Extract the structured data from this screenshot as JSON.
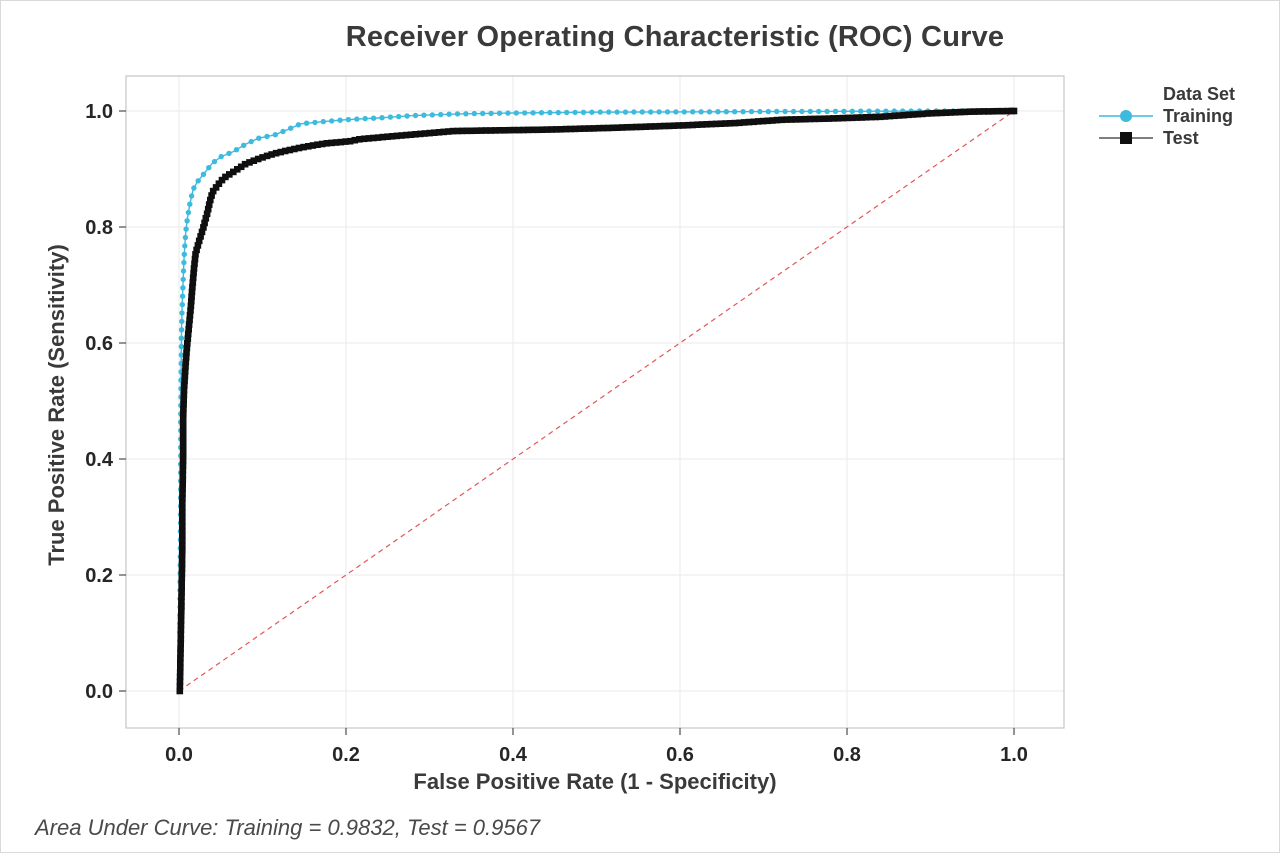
{
  "chart_data": {
    "type": "line",
    "title": "Receiver Operating Characteristic (ROC) Curve",
    "xlabel": "False Positive Rate (1 - Specificity)",
    "ylabel": "True Positive Rate (Sensitivity)",
    "footer_note": "Area Under Curve: Training = 0.9832, Test = 0.9567",
    "auc": {
      "Training": 0.9832,
      "Test": 0.9567
    },
    "xlim": [
      0,
      1
    ],
    "ylim": [
      0,
      1
    ],
    "xticks": [
      0.0,
      0.2,
      0.4,
      0.6,
      0.8,
      1.0
    ],
    "yticks": [
      0.0,
      0.2,
      0.4,
      0.6,
      0.8,
      1.0
    ],
    "grid": true,
    "legend_position": "right",
    "reference_line": {
      "name": "chance-diagonal",
      "from": [
        0,
        0
      ],
      "to": [
        1,
        1
      ],
      "color": "#e25757",
      "style": "dashed"
    },
    "series": [
      {
        "name": "Training",
        "color": "#3dbade",
        "line_color": "#3dbade",
        "marker": "circle",
        "marker_size": 5.4,
        "marker_spacing": 8.4,
        "points": [
          [
            0.0005,
            0.0
          ],
          [
            0.001,
            0.1
          ],
          [
            0.0015,
            0.22
          ],
          [
            0.002,
            0.35
          ],
          [
            0.002,
            0.47
          ],
          [
            0.0025,
            0.55
          ],
          [
            0.003,
            0.62
          ],
          [
            0.004,
            0.67
          ],
          [
            0.005,
            0.71
          ],
          [
            0.006,
            0.745
          ],
          [
            0.008,
            0.79
          ],
          [
            0.01,
            0.815
          ],
          [
            0.013,
            0.84
          ],
          [
            0.017,
            0.865
          ],
          [
            0.022,
            0.878
          ],
          [
            0.03,
            0.892
          ],
          [
            0.04,
            0.91
          ],
          [
            0.05,
            0.921
          ],
          [
            0.065,
            0.93
          ],
          [
            0.08,
            0.943
          ],
          [
            0.095,
            0.953
          ],
          [
            0.115,
            0.959
          ],
          [
            0.13,
            0.968
          ],
          [
            0.146,
            0.978
          ],
          [
            0.175,
            0.982
          ],
          [
            0.2,
            0.985
          ],
          [
            0.238,
            0.988
          ],
          [
            0.28,
            0.992
          ],
          [
            0.334,
            0.995
          ],
          [
            0.4,
            0.9965
          ],
          [
            0.5,
            0.998
          ],
          [
            0.6,
            0.9985
          ],
          [
            0.7,
            0.999
          ],
          [
            0.8,
            0.9995
          ],
          [
            0.9,
            1.0
          ],
          [
            1.0,
            1.0
          ]
        ]
      },
      {
        "name": "Test",
        "color": "#0f0f0f",
        "line_color": "#3a3a3a",
        "marker": "square",
        "marker_size": 6.6,
        "marker_spacing": 4.7,
        "points": [
          [
            0.001,
            0.0
          ],
          [
            0.002,
            0.08
          ],
          [
            0.003,
            0.16
          ],
          [
            0.004,
            0.25
          ],
          [
            0.004,
            0.33
          ],
          [
            0.005,
            0.4
          ],
          [
            0.005,
            0.47
          ],
          [
            0.006,
            0.52
          ],
          [
            0.008,
            0.565
          ],
          [
            0.01,
            0.6
          ],
          [
            0.012,
            0.63
          ],
          [
            0.014,
            0.66
          ],
          [
            0.016,
            0.695
          ],
          [
            0.018,
            0.73
          ],
          [
            0.02,
            0.755
          ],
          [
            0.024,
            0.775
          ],
          [
            0.029,
            0.798
          ],
          [
            0.034,
            0.825
          ],
          [
            0.038,
            0.85
          ],
          [
            0.041,
            0.862
          ],
          [
            0.048,
            0.875
          ],
          [
            0.054,
            0.885
          ],
          [
            0.065,
            0.895
          ],
          [
            0.08,
            0.909
          ],
          [
            0.1,
            0.92
          ],
          [
            0.113,
            0.926
          ],
          [
            0.13,
            0.932
          ],
          [
            0.15,
            0.938
          ],
          [
            0.175,
            0.944
          ],
          [
            0.206,
            0.948
          ],
          [
            0.214,
            0.951
          ],
          [
            0.26,
            0.957
          ],
          [
            0.33,
            0.9655
          ],
          [
            0.4,
            0.967
          ],
          [
            0.445,
            0.968
          ],
          [
            0.52,
            0.971
          ],
          [
            0.6,
            0.975
          ],
          [
            0.664,
            0.979
          ],
          [
            0.724,
            0.985
          ],
          [
            0.78,
            0.987
          ],
          [
            0.84,
            0.99
          ],
          [
            0.9,
            0.996
          ],
          [
            0.95,
            0.999
          ],
          [
            1.0,
            1.0
          ]
        ]
      }
    ]
  },
  "legend": {
    "title": "Data Set",
    "items": [
      {
        "label": "Training",
        "marker": "circle",
        "color": "#3dbade",
        "line_color": "#3dbade"
      },
      {
        "label": "Test",
        "marker": "square",
        "color": "#0f0f0f",
        "line_color": "#555555"
      }
    ]
  },
  "styles": {
    "grid_color": "#eaeaea",
    "frame_color": "#c6c6c6",
    "tick_color": "#4d4d4d",
    "tick_label_color": "#262626",
    "text_color": "#3a3a3a",
    "footer_color": "#4a4a4a",
    "background": "#ffffff",
    "page_border": "#d9d9d9"
  }
}
